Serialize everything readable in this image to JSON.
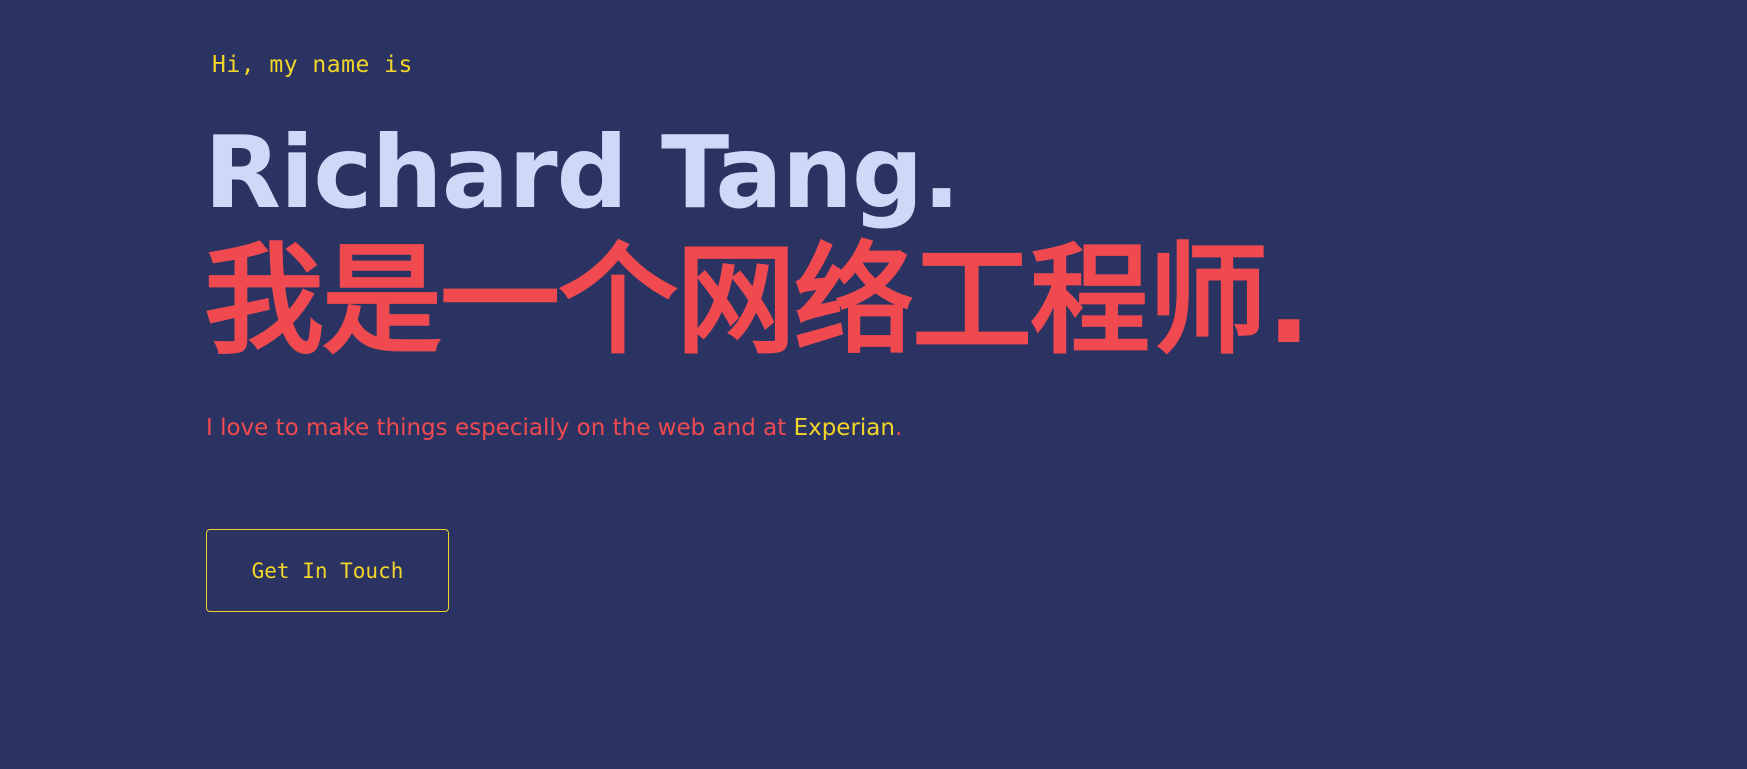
{
  "hero": {
    "greeting": "Hi, my name is",
    "name": "Richard Tang.",
    "tagline": "我是一个网络工程师.",
    "description": {
      "prefix": "I love to make things especially on the web and at ",
      "company": "Experian",
      "suffix": "."
    },
    "cta_label": "Get In Touch"
  },
  "colors": {
    "background": "#2a3361",
    "accent_yellow": "#f2d52a",
    "accent_red": "#f04a50",
    "name_light": "#cfd8f7"
  }
}
